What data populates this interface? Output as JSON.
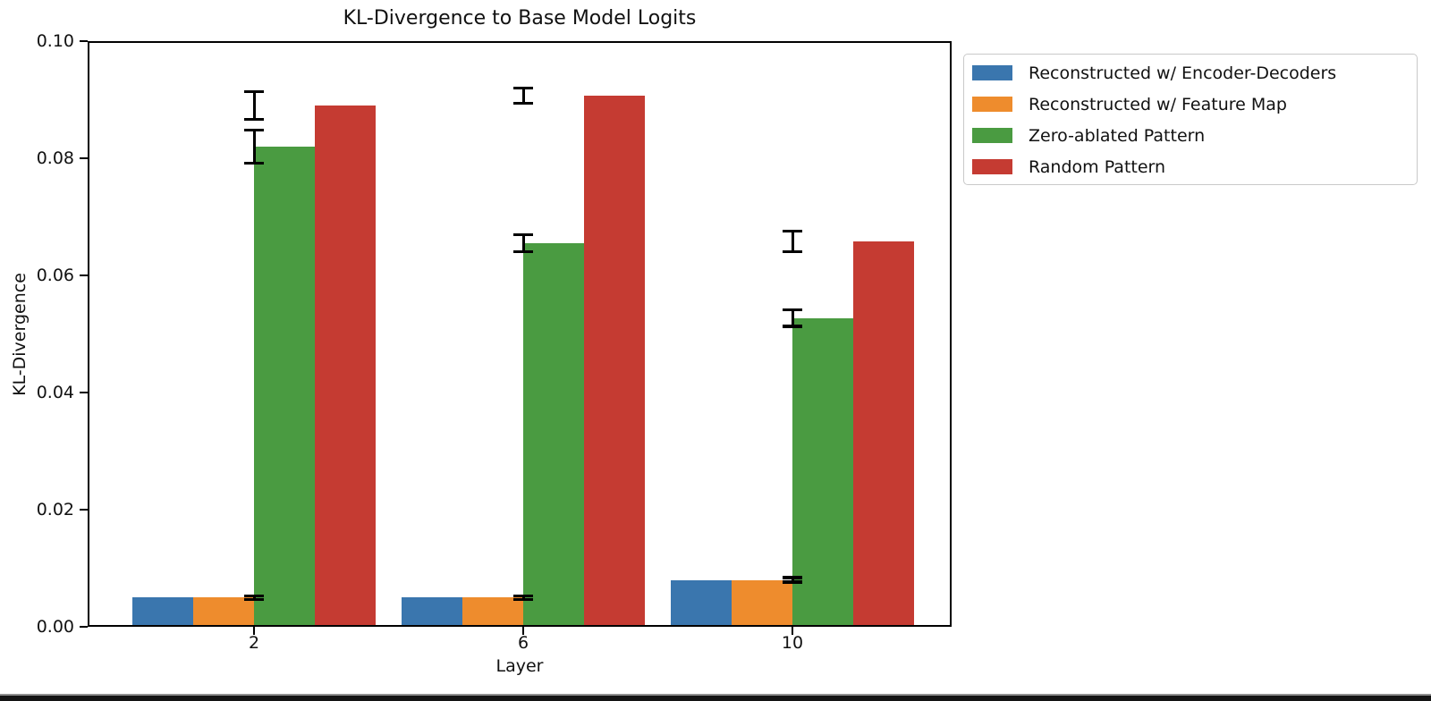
{
  "figure": {
    "background_color": "#ffffff",
    "bottom_edge_bar_color": "#141414"
  },
  "chart_data": {
    "type": "bar",
    "title": "KL-Divergence to Base Model Logits",
    "xlabel": "Layer",
    "ylabel": "KL-Divergence",
    "categories": [
      "2",
      "6",
      "10"
    ],
    "series": [
      {
        "name": "Reconstructed w/ Encoder-Decoders",
        "color": "#3a76ae",
        "values": [
          0.005,
          0.005,
          0.008
        ],
        "errors": [
          0.0003,
          0.0003,
          0.0003
        ]
      },
      {
        "name": "Reconstructed w/ Feature Map",
        "color": "#ee8c2d",
        "values": [
          0.005,
          0.005,
          0.008
        ],
        "errors": [
          0.0003,
          0.0003,
          0.0004
        ]
      },
      {
        "name": "Zero-ablated Pattern",
        "color": "#4a9b41",
        "values": [
          0.082,
          0.0655,
          0.0527
        ],
        "errors": [
          0.0028,
          0.0015,
          0.0014
        ]
      },
      {
        "name": "Random Pattern",
        "color": "#c53b32",
        "values": [
          0.089,
          0.0907,
          0.0658
        ],
        "errors": [
          0.0024,
          0.0013,
          0.0018
        ]
      }
    ],
    "ylim": [
      0,
      0.1
    ],
    "yticks": [
      {
        "value": 0.0,
        "label": "0.00"
      },
      {
        "value": 0.02,
        "label": "0.02"
      },
      {
        "value": 0.04,
        "label": "0.04"
      },
      {
        "value": 0.06,
        "label": "0.06"
      },
      {
        "value": 0.08,
        "label": "0.08"
      },
      {
        "value": 0.1,
        "label": "0.10"
      }
    ],
    "grid": false,
    "error_bar_color": "#000000",
    "legend_position": "upper right"
  }
}
